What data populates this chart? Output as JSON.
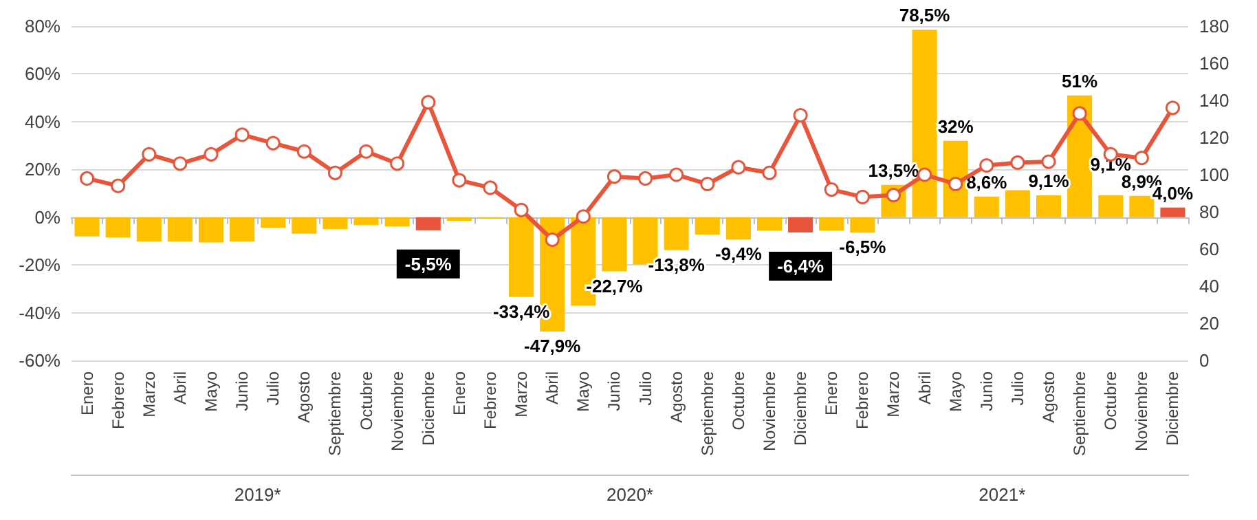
{
  "chart_data": {
    "type": "bar",
    "categories": [
      "Enero",
      "Febrero",
      "Marzo",
      "Abril",
      "Mayo",
      "Junio",
      "Julio",
      "Agosto",
      "Septiembre",
      "Octubre",
      "Noviembre",
      "Diciembre",
      "Enero",
      "Febrero",
      "Marzo",
      "Abril",
      "Mayo",
      "Junio",
      "Julio",
      "Agosto",
      "Septiembre",
      "Octubre",
      "Noviembre",
      "Diciembre",
      "Enero",
      "Febrero",
      "Marzo",
      "Abril",
      "Mayo",
      "Junio",
      "Julio",
      "Agosto",
      "Septiembre",
      "Octubre",
      "Noviembre",
      "Diciembre"
    ],
    "series": [
      {
        "color": "#ffc000",
        "values": [
          -8.1,
          -8.5,
          -10.2,
          -10.2,
          -10.6,
          -10.2,
          -4.4,
          -6.9,
          -5.0,
          -3.3,
          -3.8,
          -5.5,
          -1.5,
          -0.5,
          -33.4,
          -47.9,
          -37.1,
          -22.7,
          -19.8,
          -13.8,
          -7.3,
          -9.4,
          -5.6,
          -6.4,
          -5.6,
          -6.5,
          13.5,
          78.5,
          32,
          8.6,
          11.3,
          9.1,
          51,
          9.1,
          8.9,
          4.0
        ],
        "colors": [
          "#ffc000",
          "#ffc000",
          "#ffc000",
          "#ffc000",
          "#ffc000",
          "#ffc000",
          "#ffc000",
          "#ffc000",
          "#ffc000",
          "#ffc000",
          "#ffc000",
          "#e8553a",
          "#ffc000",
          "#ffc000",
          "#ffc000",
          "#ffc000",
          "#ffc000",
          "#ffc000",
          "#ffc000",
          "#ffc000",
          "#ffc000",
          "#ffc000",
          "#ffc000",
          "#e8553a",
          "#ffc000",
          "#ffc000",
          "#ffc000",
          "#ffc000",
          "#ffc000",
          "#ffc000",
          "#ffc000",
          "#ffc000",
          "#ffc000",
          "#ffc000",
          "#ffc000",
          "#e8553a"
        ],
        "value_labels": [
          null,
          null,
          null,
          null,
          null,
          null,
          null,
          null,
          null,
          null,
          null,
          "-5,5%",
          null,
          null,
          "-33,4%",
          "-47,9%",
          null,
          "-22,7%",
          null,
          "-13,8%",
          null,
          "-9,4%",
          null,
          "-6,4%",
          null,
          "-6,5%",
          "13,5%",
          "78,5%",
          "32%",
          "8,6%",
          null,
          "9,1%",
          "51%",
          "9,1%",
          "8,9%",
          "4,0%"
        ]
      },
      {
        "type": "line",
        "axis": "y2",
        "color": "#e8553a",
        "marker": "circle",
        "line_style": "solid",
        "values": [
          98,
          94,
          111,
          106,
          111,
          121.5,
          117,
          112.5,
          101,
          112.5,
          106,
          139,
          97,
          93,
          81,
          65,
          77.5,
          99,
          98,
          100,
          95,
          104,
          101,
          132,
          92,
          88,
          89,
          100,
          95,
          105,
          106.5,
          107,
          133,
          111,
          109,
          136
        ]
      }
    ],
    "ylim": [
      -60,
      80
    ],
    "yticks": [
      {
        "value": -60,
        "label": "-60%"
      },
      {
        "value": -40,
        "label": "-40%"
      },
      {
        "value": -20,
        "label": "-20%"
      },
      {
        "value": 0,
        "label": "0%"
      },
      {
        "value": 20,
        "label": "20%"
      },
      {
        "value": 40,
        "label": "40%"
      },
      {
        "value": 60,
        "label": "60%"
      },
      {
        "value": 80,
        "label": "80%"
      }
    ],
    "y2lim": [
      0,
      180
    ],
    "y2ticks": [
      0,
      20,
      40,
      60,
      80,
      100,
      120,
      140,
      160,
      180
    ],
    "annotations": [
      "2019*",
      "2020*",
      "2021*"
    ],
    "grid": "y"
  }
}
